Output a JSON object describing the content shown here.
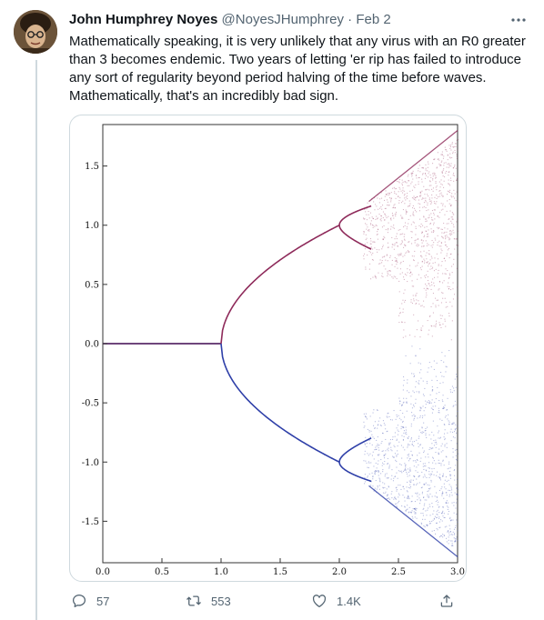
{
  "tweet": {
    "author_name": "John Humphrey Noyes",
    "author_handle": "@NoyesJHumphrey",
    "separator": "·",
    "date": "Feb 2",
    "text_lines": [
      "Mathematically speaking, it is very unlikely that any virus with an R0 greater",
      "than 3 becomes endemic.  Two years of letting 'er rip has failed to introduce",
      "any sort of regularity beyond period halving of the time before waves.",
      "Mathematically, that's an incredibly bad sign."
    ]
  },
  "actions": {
    "reply_count": "57",
    "retweet_count": "553",
    "like_count": "1.4K"
  },
  "icons": [
    "more-icon",
    "reply-icon",
    "retweet-icon",
    "like-icon",
    "share-icon"
  ],
  "colors": {
    "upper_branch": "#8e2a5a",
    "lower_branch": "#2e3fa8",
    "text_secondary": "#536471"
  },
  "chart_data": {
    "type": "scatter",
    "title": "",
    "xlabel": "",
    "ylabel": "",
    "xlim": [
      0.0,
      3.0
    ],
    "ylim": [
      -1.85,
      1.85
    ],
    "x_ticks": [
      "0.0",
      "0.5",
      "1.0",
      "1.5",
      "2.0",
      "2.5",
      "3.0"
    ],
    "y_ticks": [
      "1.5",
      "1.0",
      "0.5",
      "0.0",
      "-0.5",
      "-1.0",
      "-1.5"
    ],
    "x_tick_values": [
      0.0,
      0.5,
      1.0,
      1.5,
      2.0,
      2.5,
      3.0
    ],
    "y_tick_values": [
      1.5,
      1.0,
      0.5,
      0.0,
      -0.5,
      -1.0,
      -1.5
    ],
    "grid": false,
    "series": [
      {
        "values_desc": "symmetric bifurcation diagram",
        "points": [
          [
            0.0,
            0.0
          ],
          [
            1.0,
            0.0
          ],
          [
            1.0,
            0.0
          ],
          [
            1.25,
            0.5
          ],
          [
            1.5,
            0.7071
          ],
          [
            1.75,
            0.866
          ],
          [
            2.0,
            1.0
          ],
          [
            2.0,
            -1.0
          ],
          [
            2.25,
            0.75
          ],
          [
            2.25,
            1.18
          ],
          [
            2.25,
            -0.75
          ],
          [
            2.25,
            -1.18
          ],
          [
            2.5,
            1.58
          ],
          [
            2.5,
            -1.58
          ],
          [
            2.75,
            1.66
          ],
          [
            2.75,
            -1.66
          ],
          [
            3.0,
            1.73
          ],
          [
            3.0,
            -1.73
          ]
        ]
      }
    ]
  }
}
